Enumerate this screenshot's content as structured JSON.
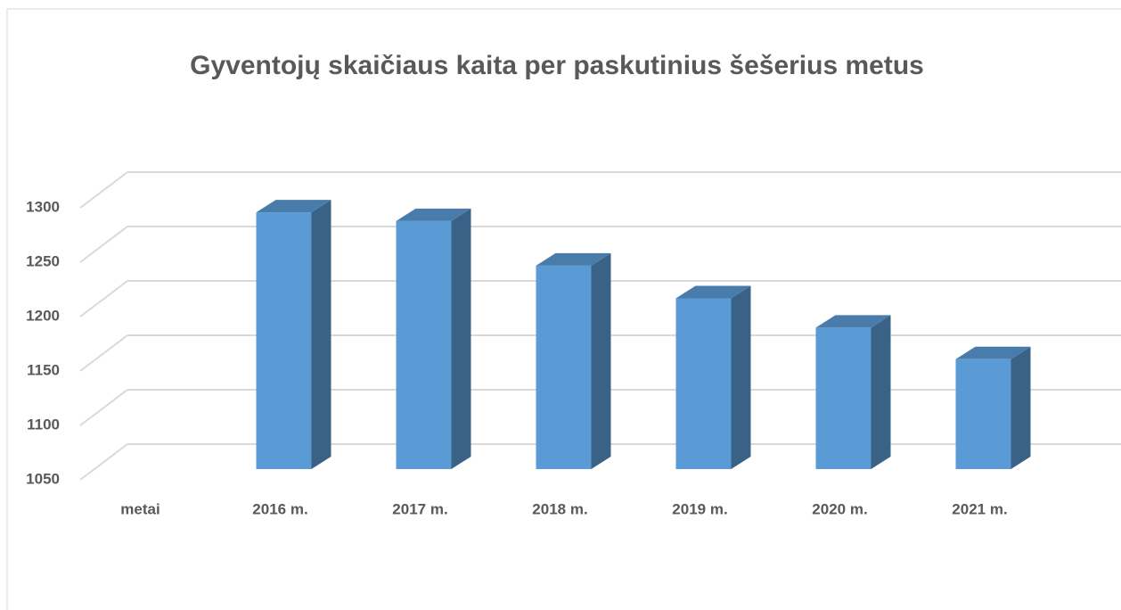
{
  "chart_data": {
    "type": "bar3d",
    "title": "Gyventojų skaičiaus kaita per paskutinius šešerius metus",
    "categories": [
      "metai",
      "2016 m.",
      "2017 m.",
      "2018 m.",
      "2019 m.",
      "2020 m.",
      "2021 m."
    ],
    "values": [
      null,
      1286,
      1278,
      1237,
      1207,
      1180,
      1151
    ],
    "color": "#5b9bd5",
    "ylim": [
      1050,
      1300
    ],
    "yticks": [
      1050,
      1100,
      1150,
      1200,
      1250,
      1300
    ],
    "grid": true
  }
}
